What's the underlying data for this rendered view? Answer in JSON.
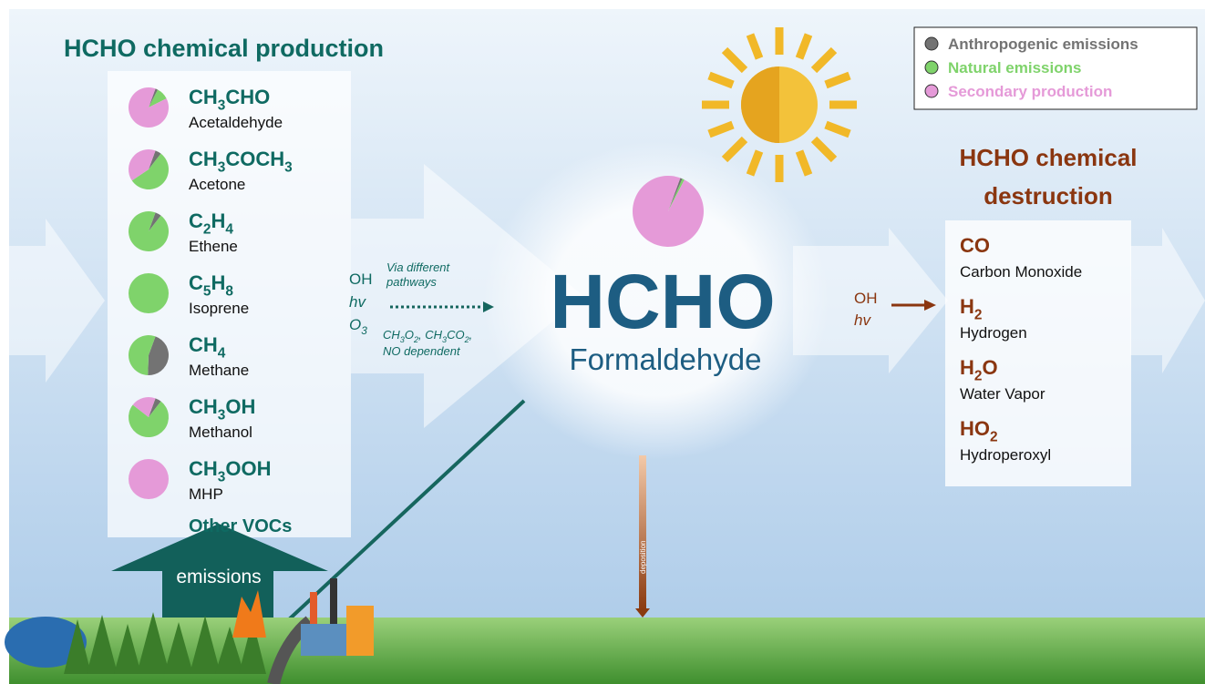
{
  "legend": [
    {
      "label": "Anthropogenic emissions",
      "color": "#737373"
    },
    {
      "label": "Natural emissions",
      "color": "#7fd36b"
    },
    {
      "label": "Secondary production",
      "color": "#e59ad8"
    }
  ],
  "production": {
    "title": "HCHO chemical production",
    "species": [
      {
        "formula": [
          "CH",
          "3",
          "CHO"
        ],
        "name": "Acetaldehyde",
        "shares": [
          2,
          10,
          88
        ]
      },
      {
        "formula": [
          "CH",
          "3",
          "COCH",
          "3"
        ],
        "name": "Acetone",
        "shares": [
          5,
          55,
          40
        ]
      },
      {
        "formula": [
          "C",
          "2",
          "H",
          "4"
        ],
        "name": "Ethene",
        "shares": [
          5,
          95,
          0
        ]
      },
      {
        "formula": [
          "C",
          "5",
          "H",
          "8"
        ],
        "name": "Isoprene",
        "shares": [
          0,
          100,
          0
        ]
      },
      {
        "formula": [
          "CH",
          "4"
        ],
        "name": "Methane",
        "shares": [
          45,
          55,
          0
        ]
      },
      {
        "formula": [
          "CH",
          "3",
          "OH"
        ],
        "name": "Methanol",
        "shares": [
          5,
          75,
          20
        ]
      },
      {
        "formula": [
          "CH",
          "3",
          "OOH"
        ],
        "name": "MHP",
        "shares": [
          0,
          0,
          100
        ]
      }
    ],
    "other": "Other VOCs",
    "emissions": "emissions"
  },
  "pathway": {
    "oxidants": [
      [
        "OH"
      ],
      [
        "hv"
      ],
      [
        "O",
        "3"
      ]
    ],
    "note": [
      "Via different",
      "pathways"
    ],
    "conditions": [
      "CH",
      "3",
      "O",
      "2",
      ", CH",
      "3",
      "CO",
      "2",
      ","
    ],
    "conditions_end": "NO dependent"
  },
  "center": {
    "formula": "HCHO",
    "name": "Formaldehyde",
    "shares": [
      1,
      1,
      98
    ],
    "deposition": "deposition"
  },
  "destruction": {
    "title": "HCHO chemical destruction",
    "oxidants": [
      "OH",
      "hv"
    ],
    "products": [
      {
        "formula": [
          "CO"
        ],
        "name": "Carbon Monoxide"
      },
      {
        "formula": [
          "H",
          "2"
        ],
        "name": "Hydrogen"
      },
      {
        "formula": [
          "H",
          "2",
          "O"
        ],
        "name": "Water Vapor"
      },
      {
        "formula": [
          "HO",
          "2"
        ],
        "name": "Hydroperoxyl"
      }
    ]
  }
}
